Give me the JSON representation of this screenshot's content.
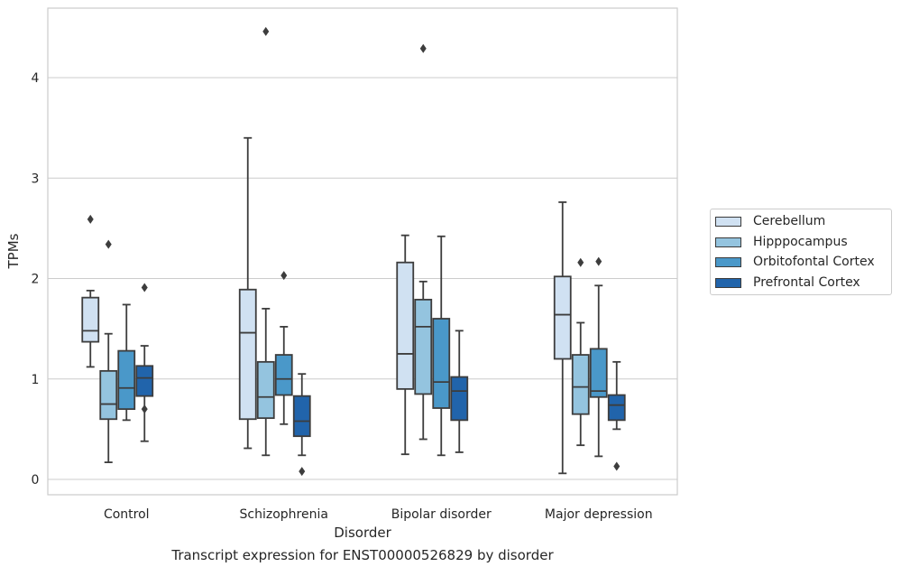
{
  "chart_data": {
    "type": "box",
    "caption": "Transcript expression for ENST00000526829 by disorder",
    "xlabel": "Disorder",
    "ylabel": "TPMs",
    "ylim": [
      -0.15,
      4.7
    ],
    "yticks": [
      0,
      1,
      2,
      3,
      4
    ],
    "grid": true,
    "legend_position": "right",
    "categories": [
      "Control",
      "Schizophrenia",
      "Bipolar disorder",
      "Major depression"
    ],
    "series": [
      {
        "name": "Cerebellum",
        "color": "#d0e1f2",
        "boxes": [
          {
            "whislo": 1.12,
            "q1": 1.37,
            "med": 1.48,
            "q3": 1.81,
            "whishi": 1.88,
            "fliers": [
              2.59
            ]
          },
          {
            "whislo": 0.31,
            "q1": 0.6,
            "med": 1.46,
            "q3": 1.89,
            "whishi": 3.4,
            "fliers": []
          },
          {
            "whislo": 0.25,
            "q1": 0.9,
            "med": 1.25,
            "q3": 2.16,
            "whishi": 2.43,
            "fliers": []
          },
          {
            "whislo": 0.06,
            "q1": 1.2,
            "med": 1.64,
            "q3": 2.02,
            "whishi": 2.76,
            "fliers": []
          }
        ]
      },
      {
        "name": "Hipppocampus",
        "color": "#94c4df",
        "boxes": [
          {
            "whislo": 0.17,
            "q1": 0.6,
            "med": 0.75,
            "q3": 1.08,
            "whishi": 1.45,
            "fliers": [
              2.34
            ]
          },
          {
            "whislo": 0.24,
            "q1": 0.61,
            "med": 0.82,
            "q3": 1.17,
            "whishi": 1.7,
            "fliers": [
              4.46
            ]
          },
          {
            "whislo": 0.4,
            "q1": 0.85,
            "med": 1.52,
            "q3": 1.79,
            "whishi": 1.97,
            "fliers": [
              4.29
            ]
          },
          {
            "whislo": 0.34,
            "q1": 0.65,
            "med": 0.92,
            "q3": 1.24,
            "whishi": 1.56,
            "fliers": [
              2.16
            ]
          }
        ]
      },
      {
        "name": "Orbitofontal Cortex",
        "color": "#4a98c9",
        "boxes": [
          {
            "whislo": 0.59,
            "q1": 0.7,
            "med": 0.91,
            "q3": 1.28,
            "whishi": 1.74,
            "fliers": []
          },
          {
            "whislo": 0.55,
            "q1": 0.84,
            "med": 1.0,
            "q3": 1.24,
            "whishi": 1.52,
            "fliers": [
              2.03
            ]
          },
          {
            "whislo": 0.24,
            "q1": 0.71,
            "med": 0.97,
            "q3": 1.6,
            "whishi": 2.42,
            "fliers": []
          },
          {
            "whislo": 0.23,
            "q1": 0.82,
            "med": 0.88,
            "q3": 1.3,
            "whishi": 1.93,
            "fliers": [
              2.17
            ]
          }
        ]
      },
      {
        "name": "Prefrontal Cortex",
        "color": "#2164ab",
        "boxes": [
          {
            "whislo": 0.38,
            "q1": 0.83,
            "med": 1.01,
            "q3": 1.13,
            "whishi": 1.33,
            "fliers": [
              1.91,
              0.7
            ]
          },
          {
            "whislo": 0.24,
            "q1": 0.43,
            "med": 0.58,
            "q3": 0.83,
            "whishi": 1.05,
            "fliers": [
              0.08
            ]
          },
          {
            "whislo": 0.27,
            "q1": 0.59,
            "med": 0.88,
            "q3": 1.02,
            "whishi": 1.48,
            "fliers": []
          },
          {
            "whislo": 0.5,
            "q1": 0.59,
            "med": 0.74,
            "q3": 0.84,
            "whishi": 1.17,
            "fliers": [
              0.13
            ]
          }
        ]
      }
    ]
  }
}
